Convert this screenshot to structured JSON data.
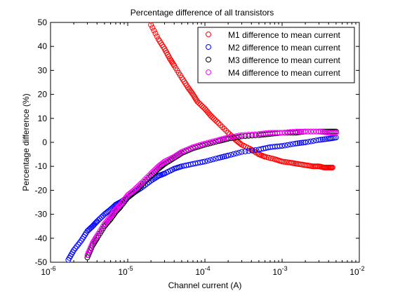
{
  "chart_data": {
    "type": "scatter",
    "title": "Percentage difference of all transistors",
    "xlabel": "Channel current (A)",
    "ylabel": "Percentage difference (%)",
    "xscale": "log",
    "xlim": [
      1e-06,
      0.01
    ],
    "ylim": [
      -50,
      50
    ],
    "xtick_labels": [
      {
        "base": "10",
        "exp": "-6"
      },
      {
        "base": "10",
        "exp": "-5"
      },
      {
        "base": "10",
        "exp": "-4"
      },
      {
        "base": "10",
        "exp": "-3"
      },
      {
        "base": "10",
        "exp": "-2"
      }
    ],
    "yticks": [
      -50,
      -40,
      -30,
      -20,
      -10,
      0,
      10,
      20,
      30,
      40,
      50
    ],
    "ytick_labels": [
      "-50",
      "-40",
      "-30",
      "-20",
      "-10",
      "0",
      "10",
      "20",
      "30",
      "40",
      "50"
    ],
    "grid": false,
    "legend_position": "top-right",
    "marker": "open-circle",
    "series": [
      {
        "name": "M1 difference to mean current",
        "color": "#ff0000",
        "x": [
          2e-05,
          2.5e-05,
          3e-05,
          3.5e-05,
          4e-05,
          5e-05,
          6e-05,
          7e-05,
          8e-05,
          0.0001,
          0.00012,
          0.00015,
          0.0002,
          0.00025,
          0.0003,
          0.0004,
          0.0005,
          0.0006,
          0.0008,
          0.001,
          0.0013,
          0.0016,
          0.002,
          0.0025,
          0.003,
          0.0035,
          0.004,
          0.0045
        ],
        "y": [
          49,
          43,
          39,
          35,
          32,
          27,
          23,
          20,
          17,
          14,
          11,
          8,
          4,
          1,
          -1,
          -3,
          -5,
          -6,
          -7,
          -8,
          -8.5,
          -9,
          -9.5,
          -10,
          -10,
          -10.5,
          -10.5,
          -10.5
        ]
      },
      {
        "name": "M2 difference to mean current",
        "color": "#0000ff",
        "x": [
          1.7e-06,
          2e-06,
          2.5e-06,
          3e-06,
          3.5e-06,
          4e-06,
          5e-06,
          6e-06,
          7e-06,
          8e-06,
          1e-05,
          1.2e-05,
          1.5e-05,
          2e-05,
          2.5e-05,
          3e-05,
          4e-05,
          5e-05,
          7e-05,
          0.0001,
          0.00015,
          0.0002,
          0.0003,
          0.0005,
          0.0007,
          0.001,
          0.0015,
          0.002,
          0.003,
          0.004,
          0.005
        ],
        "y": [
          -49,
          -45,
          -41,
          -37,
          -35,
          -33,
          -30,
          -28,
          -26,
          -25,
          -23,
          -21,
          -19,
          -16,
          -14,
          -13,
          -11,
          -10,
          -9,
          -8,
          -6.5,
          -5.5,
          -4,
          -3,
          -2,
          -1.5,
          -0.5,
          0,
          1,
          1.5,
          2
        ]
      },
      {
        "name": "M3 difference to mean current",
        "color": "#000000",
        "x": [
          3e-06,
          3.5e-06,
          4e-06,
          5e-06,
          6e-06,
          7e-06,
          8e-06,
          1e-05,
          1.2e-05,
          1.5e-05,
          2e-05,
          2.5e-05,
          3e-05,
          4e-05,
          5e-05,
          7e-05,
          0.0001,
          0.00015,
          0.0002,
          0.0003,
          0.0005,
          0.0007,
          0.001,
          0.0015,
          0.002,
          0.003,
          0.004,
          0.005
        ],
        "y": [
          -48,
          -43,
          -40,
          -35,
          -32,
          -29,
          -27,
          -23,
          -21,
          -18,
          -14,
          -11,
          -9,
          -6.5,
          -4.5,
          -2.5,
          -1,
          0.5,
          1.5,
          2.5,
          3,
          3.5,
          4,
          4,
          4.5,
          4.5,
          4.5,
          4.5
        ]
      },
      {
        "name": "M4 difference to mean current",
        "color": "#ff00ff",
        "x": [
          3e-06,
          3.5e-06,
          4e-06,
          5e-06,
          6e-06,
          7e-06,
          8e-06,
          1e-05,
          1.2e-05,
          1.5e-05,
          2e-05,
          2.5e-05,
          3e-05,
          4e-05,
          5e-05,
          7e-05,
          0.0001,
          0.00015,
          0.0002,
          0.0003,
          0.0005,
          0.0007,
          0.001,
          0.0015,
          0.002,
          0.003,
          0.004,
          0.005
        ],
        "y": [
          -47,
          -42,
          -39,
          -34,
          -31,
          -28,
          -26,
          -22,
          -20,
          -17,
          -13,
          -10,
          -8,
          -6,
          -4,
          -2,
          -0.5,
          1,
          2,
          3,
          3.5,
          4,
          4,
          4.5,
          4.5,
          4.5,
          4,
          4
        ]
      }
    ]
  }
}
